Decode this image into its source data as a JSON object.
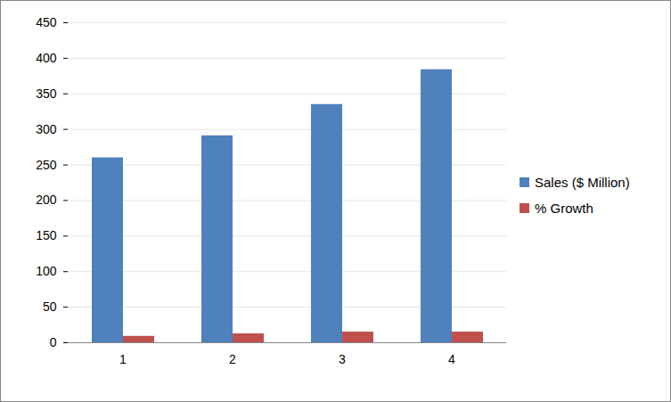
{
  "chart_data": {
    "type": "bar",
    "categories": [
      "1",
      "2",
      "3",
      "4"
    ],
    "series": [
      {
        "name": "Sales ($ Million)",
        "color": "#4f81bd",
        "values": [
          260,
          291,
          335,
          384
        ]
      },
      {
        "name": "% Growth",
        "color": "#c0504d",
        "values": [
          9,
          12.5,
          15,
          15
        ]
      }
    ],
    "ylim": [
      0,
      450
    ],
    "yticks": [
      0,
      50,
      100,
      150,
      200,
      250,
      300,
      350,
      400,
      450
    ],
    "grid": true,
    "legend": "right"
  }
}
